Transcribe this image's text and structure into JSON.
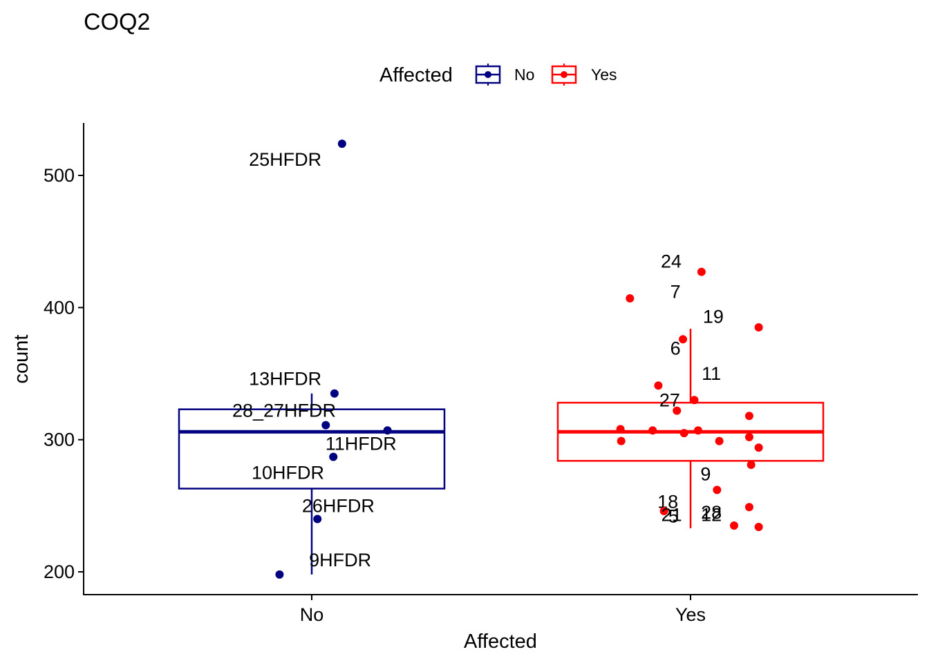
{
  "chart_data": {
    "type": "box",
    "title": "COQ2",
    "xlabel": "Affected",
    "ylabel": "count",
    "ylim": [
      180,
      540
    ],
    "yticks": [
      200,
      300,
      400,
      500
    ],
    "categories": [
      "No",
      "Yes"
    ],
    "legend": {
      "title": "Affected",
      "position": "top",
      "entries": [
        {
          "label": "No",
          "color": "#000080"
        },
        {
          "label": "Yes",
          "color": "#ff0000"
        }
      ]
    },
    "boxes": [
      {
        "category": "No",
        "color": "#000080",
        "min": 198,
        "q1": 263,
        "median": 306,
        "q3": 323,
        "max": 335
      },
      {
        "category": "Yes",
        "color": "#ff0000",
        "min": 233,
        "q1": 284,
        "median": 306,
        "q3": 328,
        "max": 384
      }
    ],
    "series": [
      {
        "name": "No",
        "color": "#000080",
        "points": [
          {
            "xoff": 0.08,
            "y": 524,
            "label": "25HFDR",
            "ldx": -0.15,
            "ldy": -12
          },
          {
            "xoff": 0.06,
            "y": 335,
            "label": "13HFDR",
            "ldx": -0.13,
            "ldy": 11
          },
          {
            "xoff": 0.037,
            "y": 311,
            "label": "28_27HFDR",
            "ldx": -0.11,
            "ldy": 11
          },
          {
            "xoff": 0.2,
            "y": 307,
            "label": "11HFDR",
            "ldx": -0.07,
            "ldy": -10
          },
          {
            "xoff": 0.057,
            "y": 287,
            "label": "10HFDR",
            "ldx": -0.12,
            "ldy": -12
          },
          {
            "xoff": 0.015,
            "y": 240,
            "label": "26HFDR",
            "ldx": 0.055,
            "ldy": 10
          },
          {
            "xoff": -0.085,
            "y": 198,
            "label": "9HFDR",
            "ldx": 0.16,
            "ldy": 11
          }
        ]
      },
      {
        "name": "Yes",
        "color": "#ff0000",
        "points": [
          {
            "xoff": 0.029,
            "y": 427,
            "label": "24",
            "ldx": -0.08,
            "ldy": 8
          },
          {
            "xoff": -0.16,
            "y": 407,
            "label": "7",
            "ldx": 0.12,
            "ldy": 5
          },
          {
            "xoff": 0.18,
            "y": 385,
            "label": "19",
            "ldx": -0.12,
            "ldy": 8
          },
          {
            "xoff": -0.02,
            "y": 376,
            "label": "6",
            "ldx": -0.02,
            "ldy": -7
          },
          {
            "xoff": -0.085,
            "y": 341,
            "label": "11",
            "ldx": 0.14,
            "ldy": 9
          },
          {
            "xoff": 0.01,
            "y": 330,
            "label": "27",
            "ldx": -0.065,
            "ldy": 0
          },
          {
            "xoff": -0.036,
            "y": 322,
            "label": "",
            "ldx": 0,
            "ldy": 0
          },
          {
            "xoff": 0.155,
            "y": 318,
            "label": "",
            "ldx": 0,
            "ldy": 0
          },
          {
            "xoff": -0.185,
            "y": 308,
            "label": "",
            "ldx": 0,
            "ldy": 0
          },
          {
            "xoff": -0.1,
            "y": 307,
            "label": "",
            "ldx": 0,
            "ldy": 0
          },
          {
            "xoff": 0.02,
            "y": 307,
            "label": "",
            "ldx": 0,
            "ldy": 0
          },
          {
            "xoff": -0.017,
            "y": 305,
            "label": "",
            "ldx": 0,
            "ldy": 0
          },
          {
            "xoff": 0.155,
            "y": 302,
            "label": "",
            "ldx": 0,
            "ldy": 0
          },
          {
            "xoff": 0.076,
            "y": 299,
            "label": "",
            "ldx": 0,
            "ldy": 0
          },
          {
            "xoff": -0.183,
            "y": 299,
            "label": "",
            "ldx": 0,
            "ldy": 0
          },
          {
            "xoff": 0.18,
            "y": 294,
            "label": "",
            "ldx": 0,
            "ldy": 0
          },
          {
            "xoff": 0.16,
            "y": 281,
            "label": "9",
            "ldx": -0.12,
            "ldy": -7
          },
          {
            "xoff": 0.07,
            "y": 262,
            "label": "18",
            "ldx": -0.13,
            "ldy": -9
          },
          {
            "xoff": 0.155,
            "y": 249,
            "label": "28",
            "ldx": -0.1,
            "ldy": -4
          },
          {
            "xoff": -0.07,
            "y": 246,
            "label": "21",
            "ldx": 0.02,
            "ldy": -3
          },
          {
            "xoff": 0.115,
            "y": 235,
            "label": "12",
            "ldx": -0.06,
            "ldy": 8
          },
          {
            "xoff": 0.18,
            "y": 234,
            "label": "5",
            "ldx": -0.225,
            "ldy": 8
          }
        ]
      }
    ]
  }
}
